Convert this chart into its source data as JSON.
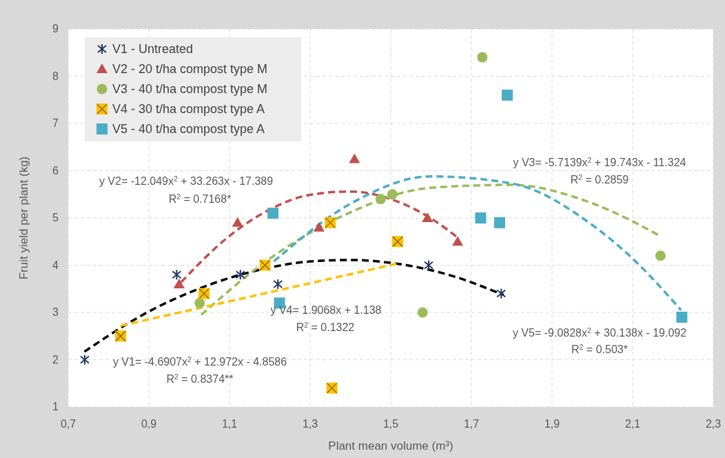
{
  "chart_data": {
    "type": "scatter",
    "xlabel": "Plant mean volume (m³)",
    "ylabel": "Fruit yield per plant (kg)",
    "xlim": [
      0.7,
      2.3
    ],
    "ylim": [
      1,
      9
    ],
    "xticks": [
      {
        "value": 0.7,
        "label": "0,7"
      },
      {
        "value": 0.9,
        "label": "0,9"
      },
      {
        "value": 1.1,
        "label": "1,1"
      },
      {
        "value": 1.3,
        "label": "1,3"
      },
      {
        "value": 1.5,
        "label": "1,5"
      },
      {
        "value": 1.7,
        "label": "1,7"
      },
      {
        "value": 1.9,
        "label": "1,9"
      },
      {
        "value": 2.1,
        "label": "2,1"
      },
      {
        "value": 2.3,
        "label": "2,3"
      }
    ],
    "yticks": [
      1,
      2,
      3,
      4,
      5,
      6,
      7,
      8,
      9
    ],
    "grid": true,
    "legend": "top left",
    "line_style": "dashed",
    "series": [
      {
        "name": "V1 - Untreated",
        "color": "#1f3864",
        "marker": "cross",
        "x": [
          0.741,
          0.969,
          1.127,
          1.22,
          1.594,
          1.774
        ],
        "values": [
          2.0,
          3.8,
          3.8,
          3.6,
          4.0,
          3.4
        ]
      },
      {
        "name": "V2 - 20 t/ha compost type M",
        "color": "#c0504d",
        "marker": "triangle",
        "x": [
          0.975,
          1.12,
          1.322,
          1.41,
          1.591,
          1.666
        ],
        "values": [
          3.6,
          4.9,
          4.8,
          6.25,
          5.0,
          4.5
        ]
      },
      {
        "name": "V3 - 40 t/ha compost type M",
        "color": "#9bbb59",
        "marker": "circle",
        "x": [
          1.026,
          1.475,
          1.504,
          1.579,
          1.727,
          2.169
        ],
        "values": [
          3.2,
          5.4,
          5.5,
          3.0,
          8.4,
          4.2
        ]
      },
      {
        "name": "V4 - 30 t/ha compost type A",
        "color": "#ffc000",
        "marker": "square",
        "x": [
          0.83,
          1.037,
          1.188,
          1.35,
          1.354,
          1.517
        ],
        "values": [
          2.5,
          3.4,
          4.0,
          4.9,
          1.4,
          4.5
        ]
      },
      {
        "name": "V5 - 40 t/ha compost type A",
        "color": "#4bacc6",
        "marker": "square",
        "x": [
          1.208,
          1.224,
          1.723,
          1.77,
          1.789,
          2.222
        ],
        "values": [
          5.1,
          3.2,
          5.0,
          4.9,
          7.6,
          2.9
        ]
      },
      {
        "type": "line",
        "color": "#000000",
        "x": [
          0.74,
          0.9,
          1.0,
          1.1,
          1.2,
          1.3,
          1.4,
          1.5,
          1.65,
          1.78
        ],
        "values": [
          2.17,
          3.02,
          3.42,
          3.73,
          3.95,
          4.08,
          4.11,
          4.05,
          3.78,
          3.37
        ]
      },
      {
        "type": "line",
        "color": "#c0504d",
        "x": [
          0.98,
          1.1,
          1.2,
          1.3,
          1.4,
          1.5,
          1.6,
          1.67
        ],
        "values": [
          3.64,
          4.62,
          5.18,
          5.49,
          5.56,
          5.4,
          4.99,
          4.56
        ]
      },
      {
        "type": "line",
        "color": "#9bbb59",
        "x": [
          1.03,
          1.2,
          1.4,
          1.6,
          1.8,
          2.0,
          2.17
        ],
        "values": [
          2.95,
          4.14,
          5.12,
          5.64,
          5.7,
          5.31,
          4.61
        ]
      },
      {
        "type": "line",
        "color": "#ffc000",
        "x": [
          0.83,
          1.52
        ],
        "values": [
          2.72,
          4.04
        ]
      },
      {
        "type": "line",
        "color": "#4bacc6",
        "x": [
          1.21,
          1.4,
          1.6,
          1.8,
          2.0,
          2.1,
          2.22
        ],
        "values": [
          4.08,
          5.3,
          5.88,
          5.73,
          4.85,
          4.14,
          3.05
        ]
      }
    ],
    "annotations": [
      "y V1= -4.6907x$^{2}$ + 12.972x - 4.8586",
      "R$^{2}$ = 0.8374**",
      "y V2= -12.049x$^{2}$ + 33.263x - 17.389",
      "R$^{2}$ = 0.7168*",
      "y V3= -5.7139x$^{2}$ + 19.743x - 11.324",
      "R$^{2}$ = 0.2859",
      "y V4= 1.9068x + 1.138",
      "R$^{2}$ = 0.1322",
      "y V5= -9.0828x$^{2}$ + 30.138x - 19.092",
      "R$^{2}$ = 0.503*"
    ]
  }
}
